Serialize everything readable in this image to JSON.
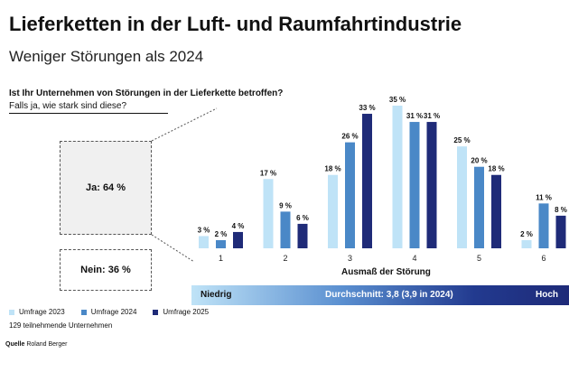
{
  "header": {
    "title": "Lieferketten in der Luft- und Raumfahrtindustrie",
    "subtitle": "Weniger Störungen als 2024"
  },
  "question": {
    "line1": "Ist Ihr Unternehmen von Störungen in der Lieferkette betroffen?",
    "line2": "Falls ja, wie stark sind diese?"
  },
  "split": {
    "yes": "Ja: 64 %",
    "no": "Nein: 36 %"
  },
  "scale": {
    "low": "Niedrig",
    "average": "Durchschnitt: 3,8 (3,9 in 2024)",
    "high": "Hoch"
  },
  "legend": {
    "items": [
      "Umfrage 2023",
      "Umfrage 2024",
      "Umfrage 2025"
    ]
  },
  "note": "129 teilnehmende Unternehmen",
  "source": {
    "label": "Quelle",
    "text": "Roland Berger"
  },
  "colors": {
    "s2023": "#bfe3f7",
    "s2024": "#4a88c7",
    "s2025": "#1f2b78"
  },
  "chart_data": {
    "type": "bar",
    "categories": [
      "1",
      "2",
      "3",
      "4",
      "5",
      "6"
    ],
    "xlabel": "Ausmaß der Störung",
    "unit": "%",
    "series": [
      {
        "name": "Umfrage 2023",
        "values": [
          3,
          17,
          18,
          35,
          25,
          2
        ],
        "labels": [
          "3 %",
          "17 %",
          "18 %",
          "35 %",
          "25 %",
          "2 %"
        ]
      },
      {
        "name": "Umfrage 2024",
        "values": [
          2,
          9,
          26,
          31,
          20,
          11
        ],
        "labels": [
          "2 %",
          "9 %",
          "26 %",
          "31 %",
          "20 %",
          "11 %"
        ]
      },
      {
        "name": "Umfrage 2025",
        "values": [
          4,
          6,
          33,
          31,
          18,
          8
        ],
        "labels": [
          "4 %",
          "6 %",
          "33 %",
          "31 %",
          "18 %",
          "8 %"
        ]
      }
    ],
    "ylim": [
      0,
      35
    ],
    "grid": false,
    "legend_position": "bottom-left"
  }
}
